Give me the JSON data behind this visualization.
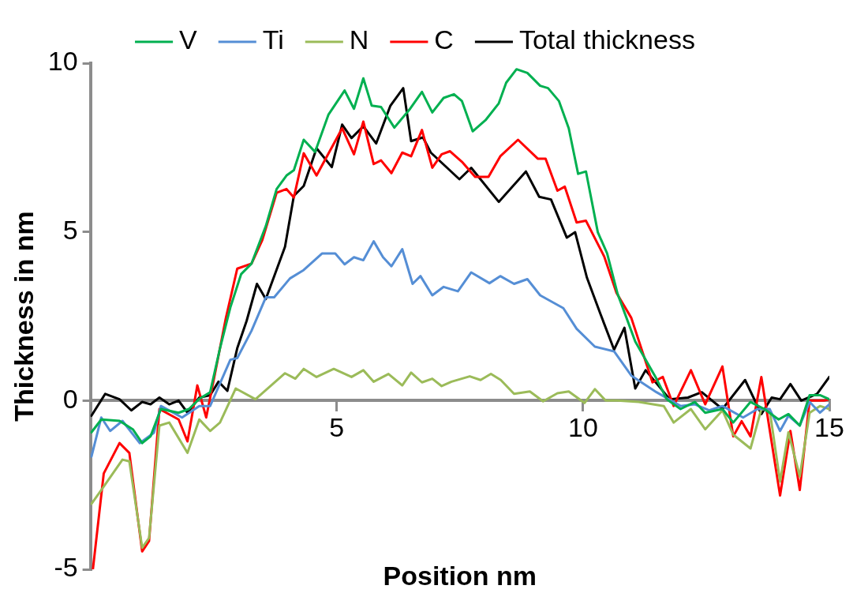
{
  "chart_data": {
    "type": "line",
    "xlabel": "Position nm",
    "ylabel": "Thickness in nm",
    "xlim": [
      0,
      15
    ],
    "xticks": [
      {
        "value": 0,
        "label": null
      },
      5,
      10,
      15
    ],
    "ylim": [
      -5,
      10
    ],
    "yticks": [
      -5,
      0,
      5,
      10
    ],
    "grid": false,
    "legend": "top",
    "marker": "none",
    "line_style": "solid",
    "series": [
      {
        "name": "V",
        "color": "#00b050",
        "x": [
          0.02,
          0.22,
          0.59,
          0.86,
          1.05,
          1.22,
          1.43,
          1.79,
          2.0,
          2.21,
          2.43,
          2.63,
          2.84,
          3.06,
          3.27,
          3.56,
          3.78,
          3.98,
          4.13,
          4.33,
          4.56,
          4.83,
          5.16,
          5.35,
          5.54,
          5.71,
          5.9,
          6.17,
          6.49,
          6.73,
          6.94,
          7.17,
          7.38,
          7.54,
          7.76,
          8.02,
          8.29,
          8.44,
          8.65,
          8.87,
          9.13,
          9.29,
          9.51,
          9.71,
          9.9,
          10.06,
          10.3,
          10.49,
          10.7,
          11.06,
          11.49,
          11.7,
          11.98,
          12.27,
          12.48,
          12.83,
          13.05,
          13.4,
          13.68,
          13.97,
          14.17,
          14.4,
          14.6,
          14.81,
          15.0
        ],
        "values": [
          -0.94,
          -0.56,
          -0.6,
          -0.85,
          -1.26,
          -1.06,
          -0.25,
          -0.36,
          -0.25,
          0.05,
          0.25,
          1.55,
          2.76,
          3.75,
          4.06,
          5.17,
          6.27,
          6.67,
          6.83,
          7.73,
          7.37,
          8.47,
          9.19,
          8.65,
          9.55,
          8.74,
          8.7,
          8.09,
          8.65,
          9.15,
          8.54,
          8.97,
          9.08,
          8.88,
          7.98,
          8.31,
          8.81,
          9.42,
          9.82,
          9.71,
          9.33,
          9.26,
          8.88,
          8.07,
          6.72,
          6.79,
          4.99,
          4.36,
          3.17,
          1.75,
          0.65,
          0.04,
          -0.25,
          -0.04,
          -0.36,
          -0.25,
          -0.65,
          -0.04,
          -0.25,
          -0.56,
          -0.4,
          -0.74,
          0.16,
          0.16,
          0.04
        ]
      },
      {
        "name": "Ti",
        "color": "#558ed5",
        "x": [
          0.02,
          0.22,
          0.4,
          0.65,
          1.0,
          1.29,
          1.43,
          1.86,
          2.21,
          2.43,
          2.84,
          2.98,
          3.27,
          3.56,
          3.73,
          4.05,
          4.33,
          4.7,
          4.97,
          5.16,
          5.35,
          5.54,
          5.75,
          5.94,
          6.11,
          6.33,
          6.54,
          6.7,
          6.94,
          7.17,
          7.46,
          7.73,
          8.1,
          8.32,
          8.6,
          8.87,
          9.13,
          9.6,
          9.87,
          10.24,
          10.63,
          10.98,
          11.49,
          11.98,
          12.27,
          12.56,
          12.83,
          13.25,
          13.54,
          13.79,
          14.0,
          14.17,
          14.4,
          14.6,
          14.81,
          15.0
        ],
        "values": [
          -1.66,
          -0.5,
          -0.9,
          -0.6,
          -1.26,
          -0.95,
          -0.16,
          -0.5,
          -0.16,
          -0.16,
          1.21,
          1.26,
          2.07,
          3.06,
          3.06,
          3.62,
          3.87,
          4.36,
          4.36,
          4.04,
          4.25,
          4.16,
          4.72,
          4.25,
          3.98,
          4.49,
          3.46,
          3.69,
          3.12,
          3.37,
          3.24,
          3.8,
          3.48,
          3.69,
          3.46,
          3.6,
          3.12,
          2.74,
          2.13,
          1.6,
          1.46,
          0.74,
          0.25,
          -0.16,
          -0.11,
          -0.29,
          -0.16,
          -0.5,
          -0.25,
          -0.25,
          -0.9,
          -0.45,
          -0.74,
          -0.04,
          -0.36,
          -0.11
        ]
      },
      {
        "name": "N",
        "color": "#9bbb59",
        "x": [
          0.02,
          0.22,
          0.65,
          0.79,
          1.05,
          1.19,
          1.4,
          1.6,
          1.97,
          2.21,
          2.43,
          2.63,
          2.95,
          3.35,
          3.95,
          4.16,
          4.33,
          4.59,
          4.94,
          5.3,
          5.54,
          5.75,
          6.05,
          6.33,
          6.51,
          6.73,
          6.94,
          7.13,
          7.33,
          7.7,
          7.92,
          8.13,
          8.33,
          8.6,
          8.92,
          9.19,
          9.48,
          9.71,
          10.03,
          10.24,
          10.46,
          10.7,
          11.13,
          11.64,
          11.84,
          12.19,
          12.48,
          12.83,
          13.05,
          13.4,
          13.62,
          13.79,
          14.0,
          14.17,
          14.4,
          14.6,
          14.81,
          15.0
        ],
        "values": [
          -3.06,
          -2.65,
          -1.75,
          -1.8,
          -4.36,
          -4.07,
          -0.74,
          -0.65,
          -1.55,
          -0.56,
          -0.9,
          -0.65,
          0.36,
          0.04,
          0.81,
          0.65,
          0.94,
          0.7,
          0.94,
          0.7,
          0.9,
          0.56,
          0.79,
          0.45,
          0.83,
          0.54,
          0.65,
          0.43,
          0.56,
          0.72,
          0.61,
          0.79,
          0.61,
          0.2,
          0.27,
          -0.02,
          0.22,
          0.27,
          -0.07,
          0.34,
          0.0,
          0.0,
          -0.04,
          -0.16,
          -0.65,
          -0.25,
          -0.85,
          -0.29,
          -1.01,
          -1.42,
          -0.25,
          -0.29,
          -2.4,
          -0.94,
          -2.25,
          -0.36,
          -0.16,
          -0.25
        ]
      },
      {
        "name": "C",
        "color": "#ff0000",
        "x": [
          0.05,
          0.27,
          0.59,
          0.79,
          1.05,
          1.19,
          1.4,
          1.79,
          1.97,
          2.17,
          2.35,
          2.52,
          2.75,
          2.98,
          3.27,
          3.49,
          3.78,
          3.98,
          4.13,
          4.33,
          4.59,
          5.11,
          5.35,
          5.54,
          5.75,
          5.9,
          6.11,
          6.33,
          6.51,
          6.73,
          6.94,
          7.13,
          7.3,
          7.54,
          7.81,
          8.08,
          8.32,
          8.68,
          9.08,
          9.24,
          9.48,
          9.63,
          9.87,
          10.06,
          10.43,
          10.68,
          10.98,
          11.41,
          11.62,
          11.84,
          12.19,
          12.48,
          12.83,
          13.05,
          13.22,
          13.4,
          13.62,
          14.0,
          14.21,
          14.4,
          14.6,
          14.89,
          15.0
        ],
        "values": [
          -5.0,
          -2.16,
          -1.26,
          -1.55,
          -4.47,
          -4.16,
          -0.25,
          -0.56,
          -1.21,
          0.45,
          -0.5,
          0.74,
          2.45,
          3.91,
          4.06,
          4.76,
          6.16,
          6.27,
          6.02,
          7.33,
          6.67,
          8.07,
          7.3,
          8.27,
          7.01,
          7.12,
          6.74,
          7.35,
          7.24,
          8.02,
          6.9,
          7.3,
          7.39,
          7.08,
          6.63,
          6.63,
          7.24,
          7.73,
          7.17,
          7.17,
          6.22,
          6.34,
          5.28,
          5.33,
          4.27,
          3.19,
          2.45,
          0.54,
          0.7,
          -0.16,
          0.9,
          -0.11,
          1.01,
          -1.06,
          -0.61,
          -1.06,
          0.7,
          -2.81,
          -0.9,
          -2.65,
          0.0,
          0.0,
          0.04
        ]
      },
      {
        "name": "Total thickness",
        "color": "#000000",
        "x": [
          0.02,
          0.3,
          0.59,
          0.83,
          1.05,
          1.22,
          1.4,
          1.6,
          1.79,
          1.97,
          2.21,
          2.43,
          2.6,
          2.78,
          2.98,
          3.17,
          3.38,
          3.56,
          3.95,
          4.13,
          4.33,
          4.59,
          4.9,
          5.11,
          5.3,
          5.54,
          5.8,
          6.09,
          6.35,
          6.51,
          6.75,
          6.91,
          7.49,
          7.73,
          8.29,
          8.84,
          9.11,
          9.35,
          9.67,
          9.84,
          10.08,
          10.35,
          10.63,
          10.84,
          11.06,
          11.27,
          11.76,
          12.13,
          12.41,
          12.83,
          13.29,
          13.62,
          13.83,
          14.0,
          14.21,
          14.43,
          14.75,
          15.0
        ],
        "values": [
          -0.45,
          0.2,
          0.04,
          -0.29,
          -0.04,
          -0.11,
          0.09,
          -0.11,
          0.0,
          -0.36,
          0.09,
          0.16,
          0.56,
          0.29,
          1.55,
          2.36,
          3.46,
          3.01,
          4.56,
          6.07,
          6.36,
          7.48,
          6.92,
          8.18,
          7.78,
          8.13,
          7.62,
          8.74,
          9.26,
          7.69,
          7.8,
          7.35,
          6.56,
          6.9,
          5.89,
          6.79,
          6.04,
          5.96,
          4.83,
          4.99,
          3.64,
          2.58,
          1.51,
          2.16,
          0.36,
          0.9,
          0.04,
          0.09,
          0.25,
          -0.25,
          0.61,
          -0.4,
          0.09,
          0.04,
          0.49,
          0.0,
          0.2,
          0.7
        ]
      }
    ]
  }
}
